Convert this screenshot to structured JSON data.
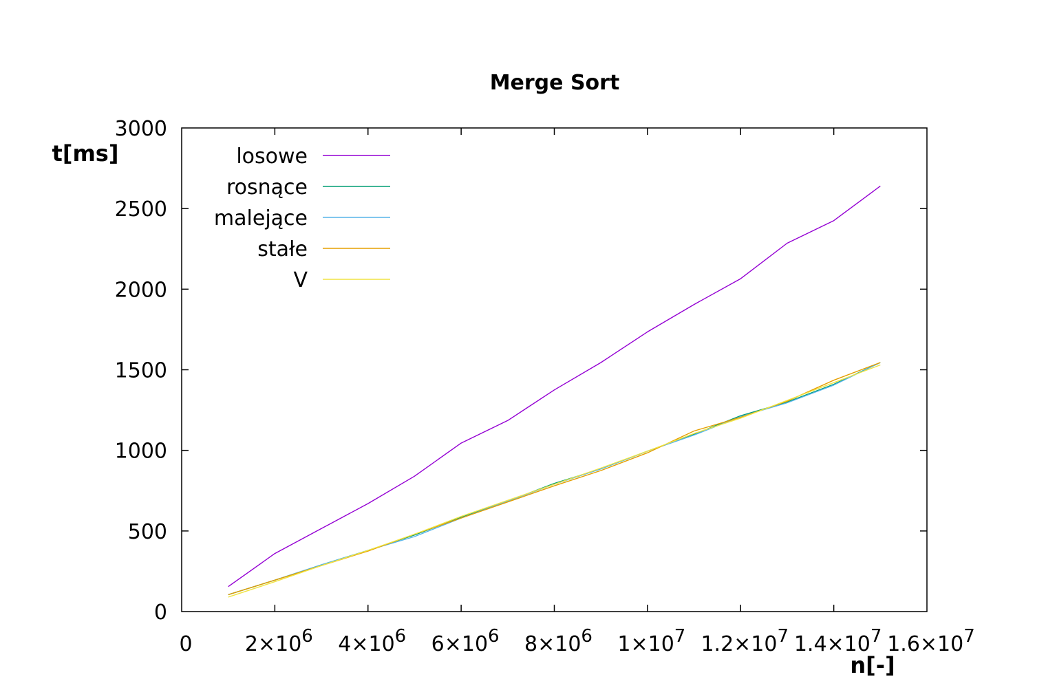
{
  "chart_data": {
    "type": "line",
    "title": "Merge Sort",
    "xlabel": "n[-]",
    "ylabel": "t[ms]",
    "xlim": [
      0,
      16000000
    ],
    "ylim": [
      0,
      3000
    ],
    "grid": false,
    "legend_position": "top-left",
    "x_ticks": [
      {
        "value": 0,
        "label": "0",
        "sup": ""
      },
      {
        "value": 2000000,
        "label": "2×10",
        "sup": "6"
      },
      {
        "value": 4000000,
        "label": "4×10",
        "sup": "6"
      },
      {
        "value": 6000000,
        "label": "6×10",
        "sup": "6"
      },
      {
        "value": 8000000,
        "label": "8×10",
        "sup": "6"
      },
      {
        "value": 10000000,
        "label": "1×10",
        "sup": "7"
      },
      {
        "value": 12000000,
        "label": "1.2×10",
        "sup": "7"
      },
      {
        "value": 14000000,
        "label": "1.4×10",
        "sup": "7"
      },
      {
        "value": 16000000,
        "label": "1.6×10",
        "sup": "7"
      }
    ],
    "y_ticks": [
      {
        "value": 0,
        "label": "0"
      },
      {
        "value": 500,
        "label": "500"
      },
      {
        "value": 1000,
        "label": "1000"
      },
      {
        "value": 1500,
        "label": "1500"
      },
      {
        "value": 2000,
        "label": "2000"
      },
      {
        "value": 2500,
        "label": "2500"
      },
      {
        "value": 3000,
        "label": "3000"
      }
    ],
    "x": [
      1000000,
      2000000,
      3000000,
      4000000,
      5000000,
      6000000,
      7000000,
      8000000,
      9000000,
      10000000,
      11000000,
      12000000,
      13000000,
      14000000,
      15000000
    ],
    "series": [
      {
        "name": "losowe",
        "color": "#9400d3",
        "values": [
          155,
          360,
          515,
          670,
          840,
          1045,
          1185,
          1375,
          1545,
          1735,
          1905,
          2065,
          2285,
          2425,
          2640
        ]
      },
      {
        "name": "rosnące",
        "color": "#009e73",
        "values": [
          105,
          195,
          290,
          380,
          475,
          585,
          685,
          795,
          885,
          995,
          1100,
          1215,
          1300,
          1410,
          1545
        ]
      },
      {
        "name": "malejące",
        "color": "#56b4e9",
        "values": [
          105,
          195,
          290,
          380,
          465,
          580,
          685,
          790,
          885,
          995,
          1095,
          1210,
          1295,
          1405,
          1545
        ]
      },
      {
        "name": "stałe",
        "color": "#e69f00",
        "values": [
          105,
          195,
          285,
          375,
          480,
          580,
          680,
          780,
          875,
          985,
          1120,
          1205,
          1305,
          1435,
          1545
        ]
      },
      {
        "name": "V",
        "color": "#f0e442",
        "values": [
          90,
          185,
          285,
          380,
          480,
          590,
          690,
          790,
          890,
          995,
          1105,
          1200,
          1310,
          1420,
          1530
        ]
      }
    ]
  }
}
